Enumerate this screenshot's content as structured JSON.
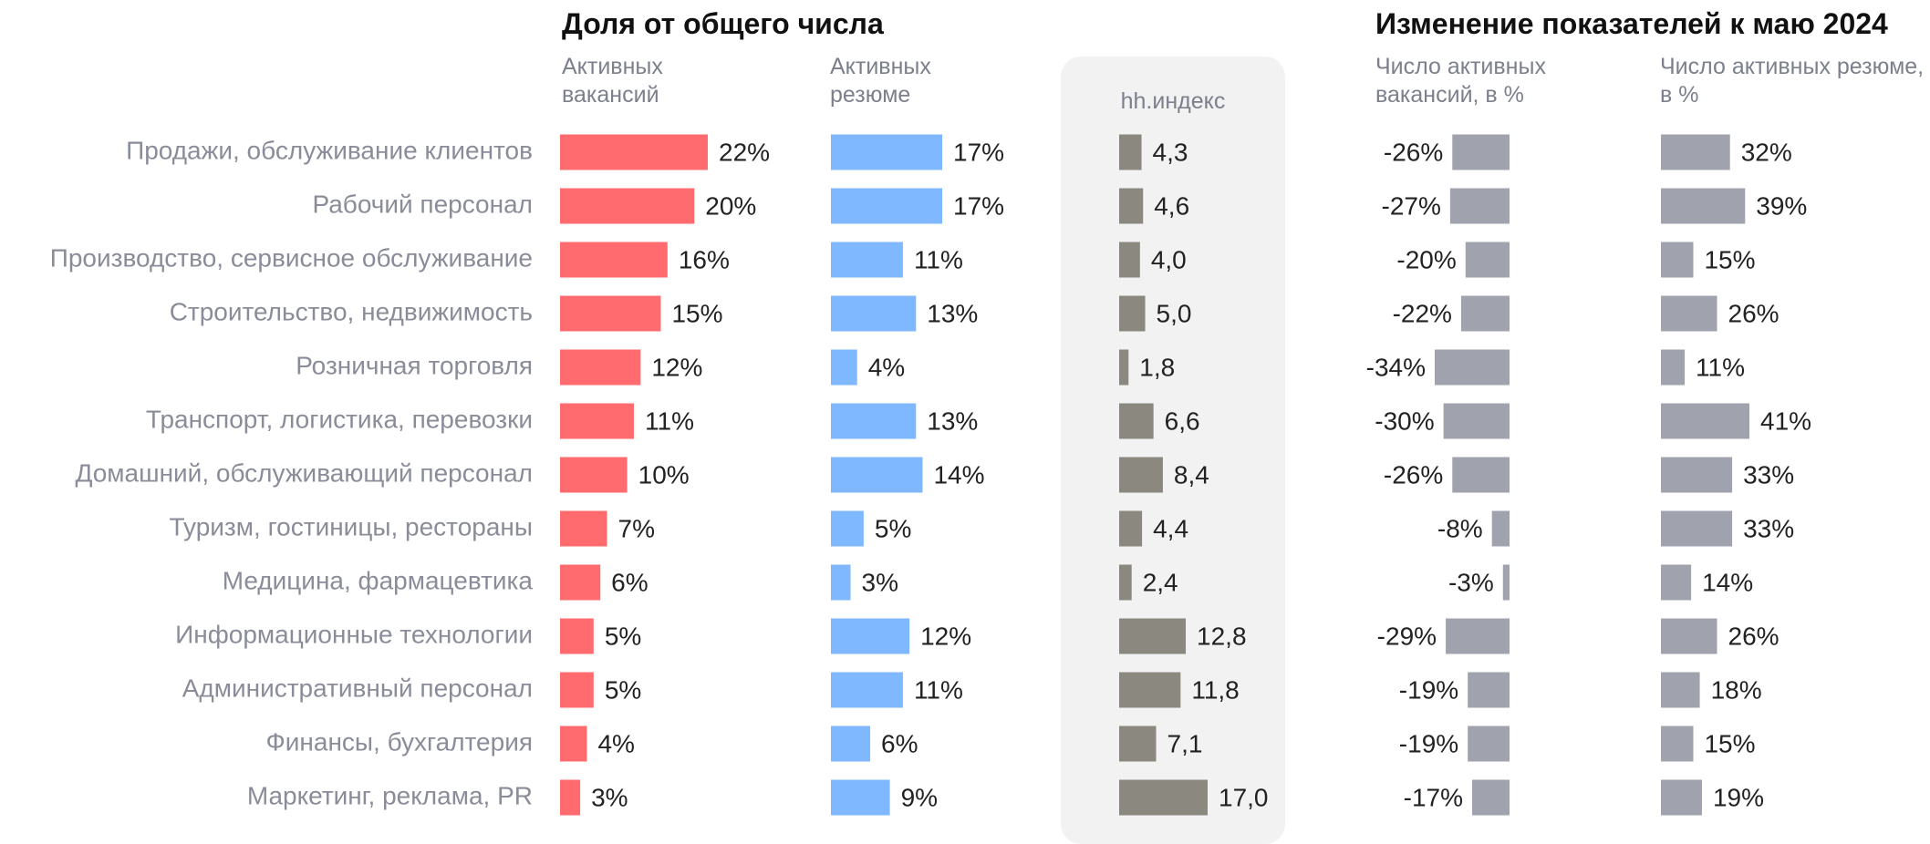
{
  "chart_data": {
    "type": "bar",
    "titles": [
      "Доля от общего числа",
      "Изменение показателей к маю 2024"
    ],
    "categories": [
      "Продажи, обслуживание клиентов",
      "Рабочий персонал",
      "Производство, сервисное обслуживание",
      "Строительство, недвижимость",
      "Розничная торговля",
      "Транспорт, логистика, перевозки",
      "Домашний, обслуживающий персонал",
      "Туризм, гостиницы, рестораны",
      "Медицина, фармацевтика",
      "Информационные технологии",
      "Административный персонал",
      "Финансы, бухгалтерия",
      "Маркетинг, реклама, PR"
    ],
    "series": [
      {
        "name": "Активных вакансий",
        "color": "#ff6b6e",
        "values": [
          22,
          20,
          16,
          15,
          12,
          11,
          10,
          7,
          6,
          5,
          5,
          4,
          3
        ],
        "value_labels": [
          "22%",
          "20%",
          "16%",
          "15%",
          "12%",
          "11%",
          "10%",
          "7%",
          "6%",
          "5%",
          "5%",
          "4%",
          "3%"
        ]
      },
      {
        "name": "Активных резюме",
        "color": "#7fb8ff",
        "values": [
          17,
          17,
          11,
          13,
          4,
          13,
          14,
          5,
          3,
          12,
          11,
          6,
          9
        ],
        "value_labels": [
          "17%",
          "17%",
          "11%",
          "13%",
          "4%",
          "13%",
          "14%",
          "5%",
          "3%",
          "12%",
          "11%",
          "6%",
          "9%"
        ]
      },
      {
        "name": "hh.индекс",
        "color": "#8b8880",
        "values": [
          4.3,
          4.6,
          4.0,
          5.0,
          1.8,
          6.6,
          8.4,
          4.4,
          2.4,
          12.8,
          11.8,
          7.1,
          17.0
        ],
        "value_labels": [
          "4,3",
          "4,6",
          "4,0",
          "5,0",
          "1,8",
          "6,6",
          "8,4",
          "4,4",
          "2,4",
          "12,8",
          "11,8",
          "7,1",
          "17,0"
        ]
      },
      {
        "name": "Число активных вакансий, в %",
        "color": "#a0a3ad",
        "values": [
          -26,
          -27,
          -20,
          -22,
          -34,
          -30,
          -26,
          -8,
          -3,
          -29,
          -19,
          -19,
          -17
        ],
        "value_labels": [
          "-26%",
          "-27%",
          "-20%",
          "-22%",
          "-34%",
          "-30%",
          "-26%",
          "-8%",
          "-3%",
          "-29%",
          "-19%",
          "-19%",
          "-17%"
        ]
      },
      {
        "name": "Число активных резюме, в %",
        "color": "#a0a3ad",
        "values": [
          32,
          39,
          15,
          26,
          11,
          41,
          33,
          33,
          14,
          26,
          18,
          15,
          19
        ],
        "value_labels": [
          "32%",
          "39%",
          "15%",
          "26%",
          "11%",
          "41%",
          "33%",
          "33%",
          "14%",
          "26%",
          "18%",
          "15%",
          "19%"
        ]
      }
    ]
  }
}
